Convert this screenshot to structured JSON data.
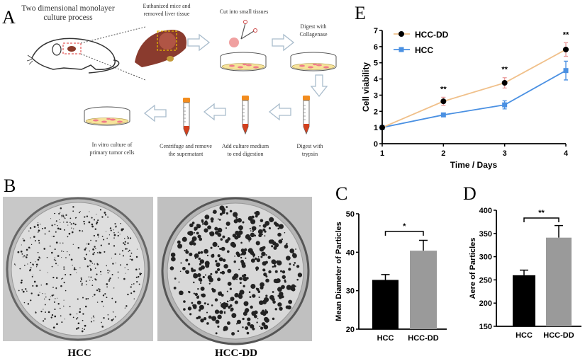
{
  "panel_labels": {
    "a": "A",
    "b": "B",
    "c": "C",
    "d": "D",
    "e": "E"
  },
  "panel_a": {
    "title_line1": "Two dimensional monolayer",
    "title_line2": "culture process",
    "steps": [
      {
        "l1": "Euthanized mice and",
        "l2": "removed liver tissue"
      },
      {
        "l1": "Cut into small tissues",
        "l2": ""
      },
      {
        "l1": "Digest with",
        "l2": "Collagenase"
      },
      {
        "l1": "Digest with",
        "l2": "trypsin"
      },
      {
        "l1": "Add culture medium",
        "l2": "to end digestion"
      },
      {
        "l1": "Centrifuge and remove",
        "l2": "the supernatant"
      },
      {
        "l1": "In vitro culture of",
        "l2": "primary tumor cells"
      }
    ]
  },
  "panel_b": {
    "left_label": "HCC",
    "right_label": "HCC-DD"
  },
  "colors": {
    "hcc_dd_line": "#f0c08a",
    "hcc_line": "#4a90e2",
    "bar_hcc": "#000000",
    "bar_hcc_dd": "#9a9a9a"
  },
  "chart_data": [
    {
      "id": "E",
      "type": "line",
      "xlabel": "Time / Days",
      "ylabel": "Cell viability",
      "x": [
        1,
        2,
        3,
        4
      ],
      "xlim": [
        1,
        4
      ],
      "ylim": [
        0,
        7
      ],
      "yticks": [
        0,
        1,
        2,
        3,
        4,
        5,
        6,
        7
      ],
      "series": [
        {
          "name": "HCC-DD",
          "values": [
            1,
            2.62,
            3.76,
            5.82
          ],
          "err": [
            0,
            0.25,
            0.32,
            0.42
          ]
        },
        {
          "name": "HCC",
          "values": [
            1,
            1.78,
            2.4,
            4.52
          ],
          "err": [
            0,
            0.08,
            0.25,
            0.58
          ]
        }
      ],
      "annotations": [
        "",
        "**",
        "**",
        "**"
      ]
    },
    {
      "id": "C",
      "type": "bar",
      "categories": [
        "HCC",
        "HCC-DD"
      ],
      "values": [
        32.8,
        40.4
      ],
      "err": [
        1.4,
        2.7
      ],
      "ylabel": "Mean Diameter of Particles",
      "ylim": [
        20,
        50
      ],
      "yticks": [
        20,
        30,
        40,
        50
      ],
      "significance": "*"
    },
    {
      "id": "D",
      "type": "bar",
      "categories": [
        "HCC",
        "HCC-DD"
      ],
      "values": [
        260,
        341
      ],
      "err": [
        11,
        26
      ],
      "ylabel": "Aere of Particles",
      "ylim": [
        150,
        400
      ],
      "yticks": [
        150,
        200,
        250,
        300,
        350,
        400
      ],
      "significance": "**"
    }
  ]
}
